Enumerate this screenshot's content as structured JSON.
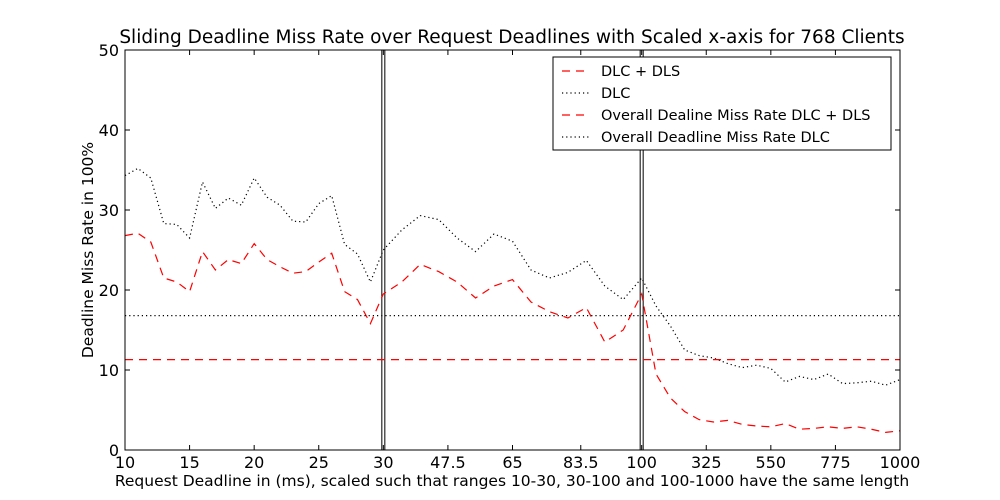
{
  "chart_data": {
    "type": "line",
    "title": "Sliding Deadline Miss Rate over Request Deadlines with Scaled x-axis for 768 Clients",
    "xlabel": "Request Deadline in (ms), scaled such that ranges 10-30, 30-100 and 100-1000 have the same length",
    "ylabel": "Deadline Miss Rate in 100%",
    "ylim": [
      0,
      50
    ],
    "yticks": [
      "0",
      "10",
      "20",
      "30",
      "40",
      "50"
    ],
    "xticks": [
      "10",
      "15",
      "20",
      "25",
      "30",
      "47.5",
      "65",
      "83.5",
      "100",
      "325",
      "550",
      "775",
      "1000"
    ],
    "x_scale": "piecewise: 10-30, 30-100 and 100-1000 each occupy one third of the axis",
    "range_boundaries": [
      30,
      100
    ],
    "grid": false,
    "legend_position": "top-right",
    "series": [
      {
        "name": "DLC + DLS",
        "color": "#ff0000",
        "style": "dashed",
        "x": [
          10,
          11,
          12,
          13,
          14,
          15,
          16,
          17,
          18,
          19,
          20,
          21,
          22,
          23,
          24,
          25,
          26,
          27,
          28,
          29,
          30,
          35,
          40,
          45,
          50,
          55,
          60,
          65,
          70,
          75,
          80,
          85,
          90,
          95,
          100,
          150,
          200,
          250,
          300,
          350,
          400,
          450,
          500,
          550,
          600,
          650,
          700,
          750,
          800,
          850,
          900,
          950,
          1000
        ],
        "values": [
          26.8,
          27.1,
          26.0,
          21.5,
          21.0,
          19.8,
          24.8,
          22.5,
          23.8,
          23.3,
          25.8,
          23.8,
          22.9,
          22.1,
          22.3,
          23.5,
          24.6,
          19.8,
          18.8,
          15.8,
          19.5,
          21.0,
          23.2,
          22.3,
          21.0,
          19.0,
          20.5,
          21.3,
          18.5,
          17.3,
          16.5,
          17.8,
          13.5,
          15.0,
          19.5,
          9.5,
          6.5,
          4.8,
          3.8,
          3.5,
          3.7,
          3.2,
          3.0,
          2.9,
          3.3,
          2.6,
          2.7,
          2.9,
          2.7,
          2.9,
          2.6,
          2.2,
          2.4
        ]
      },
      {
        "name": "DLC",
        "color": "#000000",
        "style": "dotted",
        "x": [
          10,
          11,
          12,
          13,
          14,
          15,
          16,
          17,
          18,
          19,
          20,
          21,
          22,
          23,
          24,
          25,
          26,
          27,
          28,
          29,
          30,
          35,
          40,
          45,
          50,
          55,
          60,
          65,
          70,
          75,
          80,
          85,
          90,
          95,
          100,
          150,
          200,
          250,
          300,
          350,
          400,
          450,
          500,
          550,
          600,
          650,
          700,
          750,
          800,
          850,
          900,
          950,
          1000
        ],
        "values": [
          34.3,
          35.2,
          34.0,
          28.3,
          28.2,
          26.5,
          33.5,
          30.2,
          31.5,
          30.6,
          34.0,
          31.6,
          30.6,
          28.6,
          28.5,
          30.8,
          31.8,
          25.7,
          24.5,
          21.0,
          25.0,
          27.5,
          29.3,
          28.8,
          26.5,
          24.8,
          27.0,
          26.1,
          22.5,
          21.5,
          22.2,
          23.7,
          20.5,
          18.8,
          21.5,
          18.0,
          15.5,
          12.5,
          11.8,
          11.5,
          10.8,
          10.3,
          10.6,
          10.2,
          8.5,
          9.2,
          8.8,
          9.5,
          8.3,
          8.4,
          8.6,
          8.1,
          8.8
        ]
      },
      {
        "name": "Overall Dealine Miss Rate DLC + DLS",
        "color": "#ff0000",
        "style": "dashed",
        "constant": 11.3
      },
      {
        "name": "Overall Deadline Miss Rate DLC",
        "color": "#000000",
        "style": "dotted",
        "constant": 16.8
      }
    ]
  }
}
